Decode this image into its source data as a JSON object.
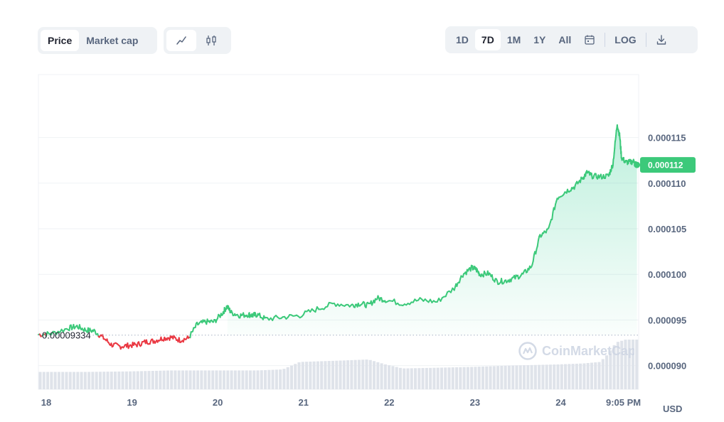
{
  "toolbar": {
    "metric_tabs": [
      {
        "label": "Price",
        "active": true
      },
      {
        "label": "Market cap",
        "active": false
      }
    ],
    "chart_types": [
      {
        "icon": "line-chart-icon",
        "active": true
      },
      {
        "icon": "candlestick-icon",
        "active": false
      }
    ],
    "ranges": [
      {
        "label": "1D",
        "active": false
      },
      {
        "label": "7D",
        "active": true
      },
      {
        "label": "1M",
        "active": false
      },
      {
        "label": "1Y",
        "active": false
      },
      {
        "label": "All",
        "active": false
      }
    ],
    "calendar_icon": "calendar-icon",
    "log_label": "LOG",
    "download_icon": "download-icon"
  },
  "currency": "USD",
  "watermark": "CoinMarketCap",
  "colors": {
    "up": "#16c784",
    "down": "#ea3943",
    "up_line": "#3cc97a",
    "price_tag": "#3cc97a"
  },
  "chart_data": {
    "type": "line",
    "title": "",
    "xlabel": "",
    "ylabel": "",
    "x_tick_labels": [
      "18",
      "19",
      "20",
      "21",
      "22",
      "23",
      "24",
      "9:05 PM"
    ],
    "y_tick_labels": [
      "0.000115",
      "0.000110",
      "0.000105",
      "0.000100",
      "0.000095",
      "0.000090"
    ],
    "y_ticks": [
      0.000115,
      0.00011,
      0.000105,
      0.0001,
      9.5e-05,
      9e-05
    ],
    "ylim": [
      8.74e-05,
      0.0001219
    ],
    "xlim": [
      17.95,
      24.95
    ],
    "grid": true,
    "open_price": 9.334e-05,
    "open_price_label": "0.00009334",
    "current_price": 0.000112,
    "current_price_label": "0.000112",
    "series": [
      {
        "x": [
          17.95,
          18.1,
          18.3,
          18.4,
          18.5,
          18.6,
          18.7,
          18.8,
          18.9,
          19.0,
          19.1,
          19.2,
          19.3,
          19.4,
          19.5,
          19.6,
          19.7,
          19.8,
          19.9,
          20.0,
          20.1,
          20.15,
          20.2,
          20.3,
          20.4,
          20.45,
          20.5,
          20.6,
          20.8,
          21.0,
          21.2,
          21.4,
          21.6,
          21.7,
          21.8,
          21.9,
          22.0,
          22.2,
          22.4,
          22.6,
          22.8,
          22.9,
          23.0,
          23.05,
          23.1,
          23.2,
          23.3,
          23.4,
          23.5,
          23.6,
          23.7,
          23.8,
          23.9,
          24.0,
          24.1,
          24.2,
          24.3,
          24.35,
          24.4,
          24.5,
          24.6,
          24.65,
          24.7,
          24.73,
          24.75,
          24.8,
          24.85,
          24.9,
          24.93
        ],
        "y": [
          9.34e-05,
          9.35e-05,
          9.41e-05,
          9.43e-05,
          9.39e-05,
          9.38e-05,
          9.31e-05,
          9.23e-05,
          9.21e-05,
          9.22e-05,
          9.23e-05,
          9.26e-05,
          9.27e-05,
          9.3e-05,
          9.31e-05,
          9.28e-05,
          9.3e-05,
          9.45e-05,
          9.48e-05,
          9.48e-05,
          9.58e-05,
          9.65e-05,
          9.58e-05,
          9.55e-05,
          9.56e-05,
          9.55e-05,
          9.56e-05,
          9.51e-05,
          9.53e-05,
          9.55e-05,
          9.62e-05,
          9.68e-05,
          9.66e-05,
          9.68e-05,
          9.66e-05,
          9.74e-05,
          9.72e-05,
          9.68e-05,
          9.72e-05,
          9.7e-05,
          9.85e-05,
          0.0001,
          0.0001007,
          0.0001006,
          0.0001,
          0.0001001,
          9.92e-05,
          9.93e-05,
          9.96e-05,
          0.0001,
          0.0001009,
          0.0001042,
          0.0001049,
          0.0001084,
          0.0001091,
          0.0001096,
          0.0001106,
          0.0001112,
          0.0001108,
          0.0001107,
          0.0001108,
          0.0001121,
          0.0001165,
          0.0001151,
          0.0001128,
          0.0001123,
          0.0001123,
          0.0001124,
          0.000112
        ],
        "color_up": "#3cc97a",
        "color_down": "#ea3943"
      }
    ],
    "volume": {
      "x": [
        17.95,
        18.5,
        19.0,
        19.5,
        20.0,
        20.5,
        20.8,
        21.0,
        21.5,
        21.8,
        22.0,
        22.2,
        22.5,
        23.0,
        23.5,
        24.0,
        24.3,
        24.5,
        24.6,
        24.65,
        24.7,
        24.8,
        24.95
      ],
      "v": [
        0.35,
        0.35,
        0.36,
        0.38,
        0.38,
        0.38,
        0.4,
        0.55,
        0.58,
        0.6,
        0.5,
        0.42,
        0.43,
        0.45,
        0.48,
        0.5,
        0.52,
        0.55,
        0.72,
        0.86,
        0.95,
        1.0,
        1.0
      ]
    }
  }
}
